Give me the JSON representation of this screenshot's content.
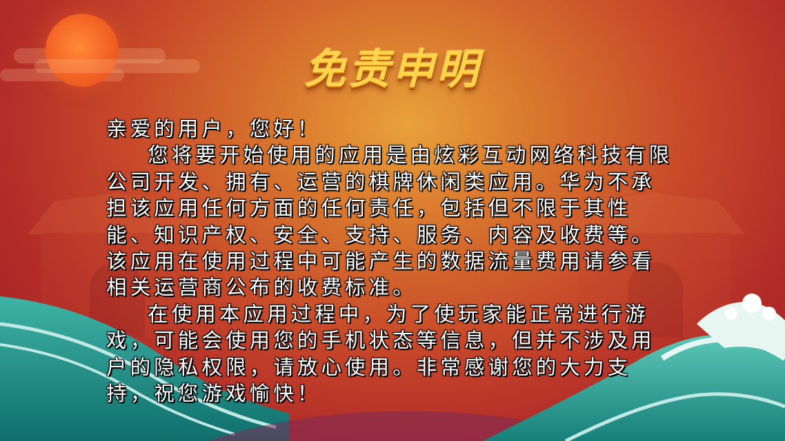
{
  "screen": {
    "title": "免责申明",
    "greeting": "亲爱的用户，您好！",
    "paragraphs": [
      "您将要开始使用的应用是由炫彩互动网络科技有限公司开发、拥有、运营的棋牌休闲类应用。华为不承担该应用任何方面的任何责任，包括但不限于其性能、知识产权、安全、支持、服务、内容及收费等。该应用在使用过程中可能产生的数据流量费用请参看相关运营商公布的收费标准。",
      "在使用本应用过程中，为了使玩家能正常进行游戏，可能会使用您的手机状态等信息，但并不涉及用户的隐私权限，请放心使用。非常感谢您的大力支持，祝您游戏愉快！"
    ]
  },
  "colors": {
    "title": "#ffd34a",
    "text": "#ffffff",
    "background": "#b22b28",
    "wave": "#1c8f86"
  }
}
